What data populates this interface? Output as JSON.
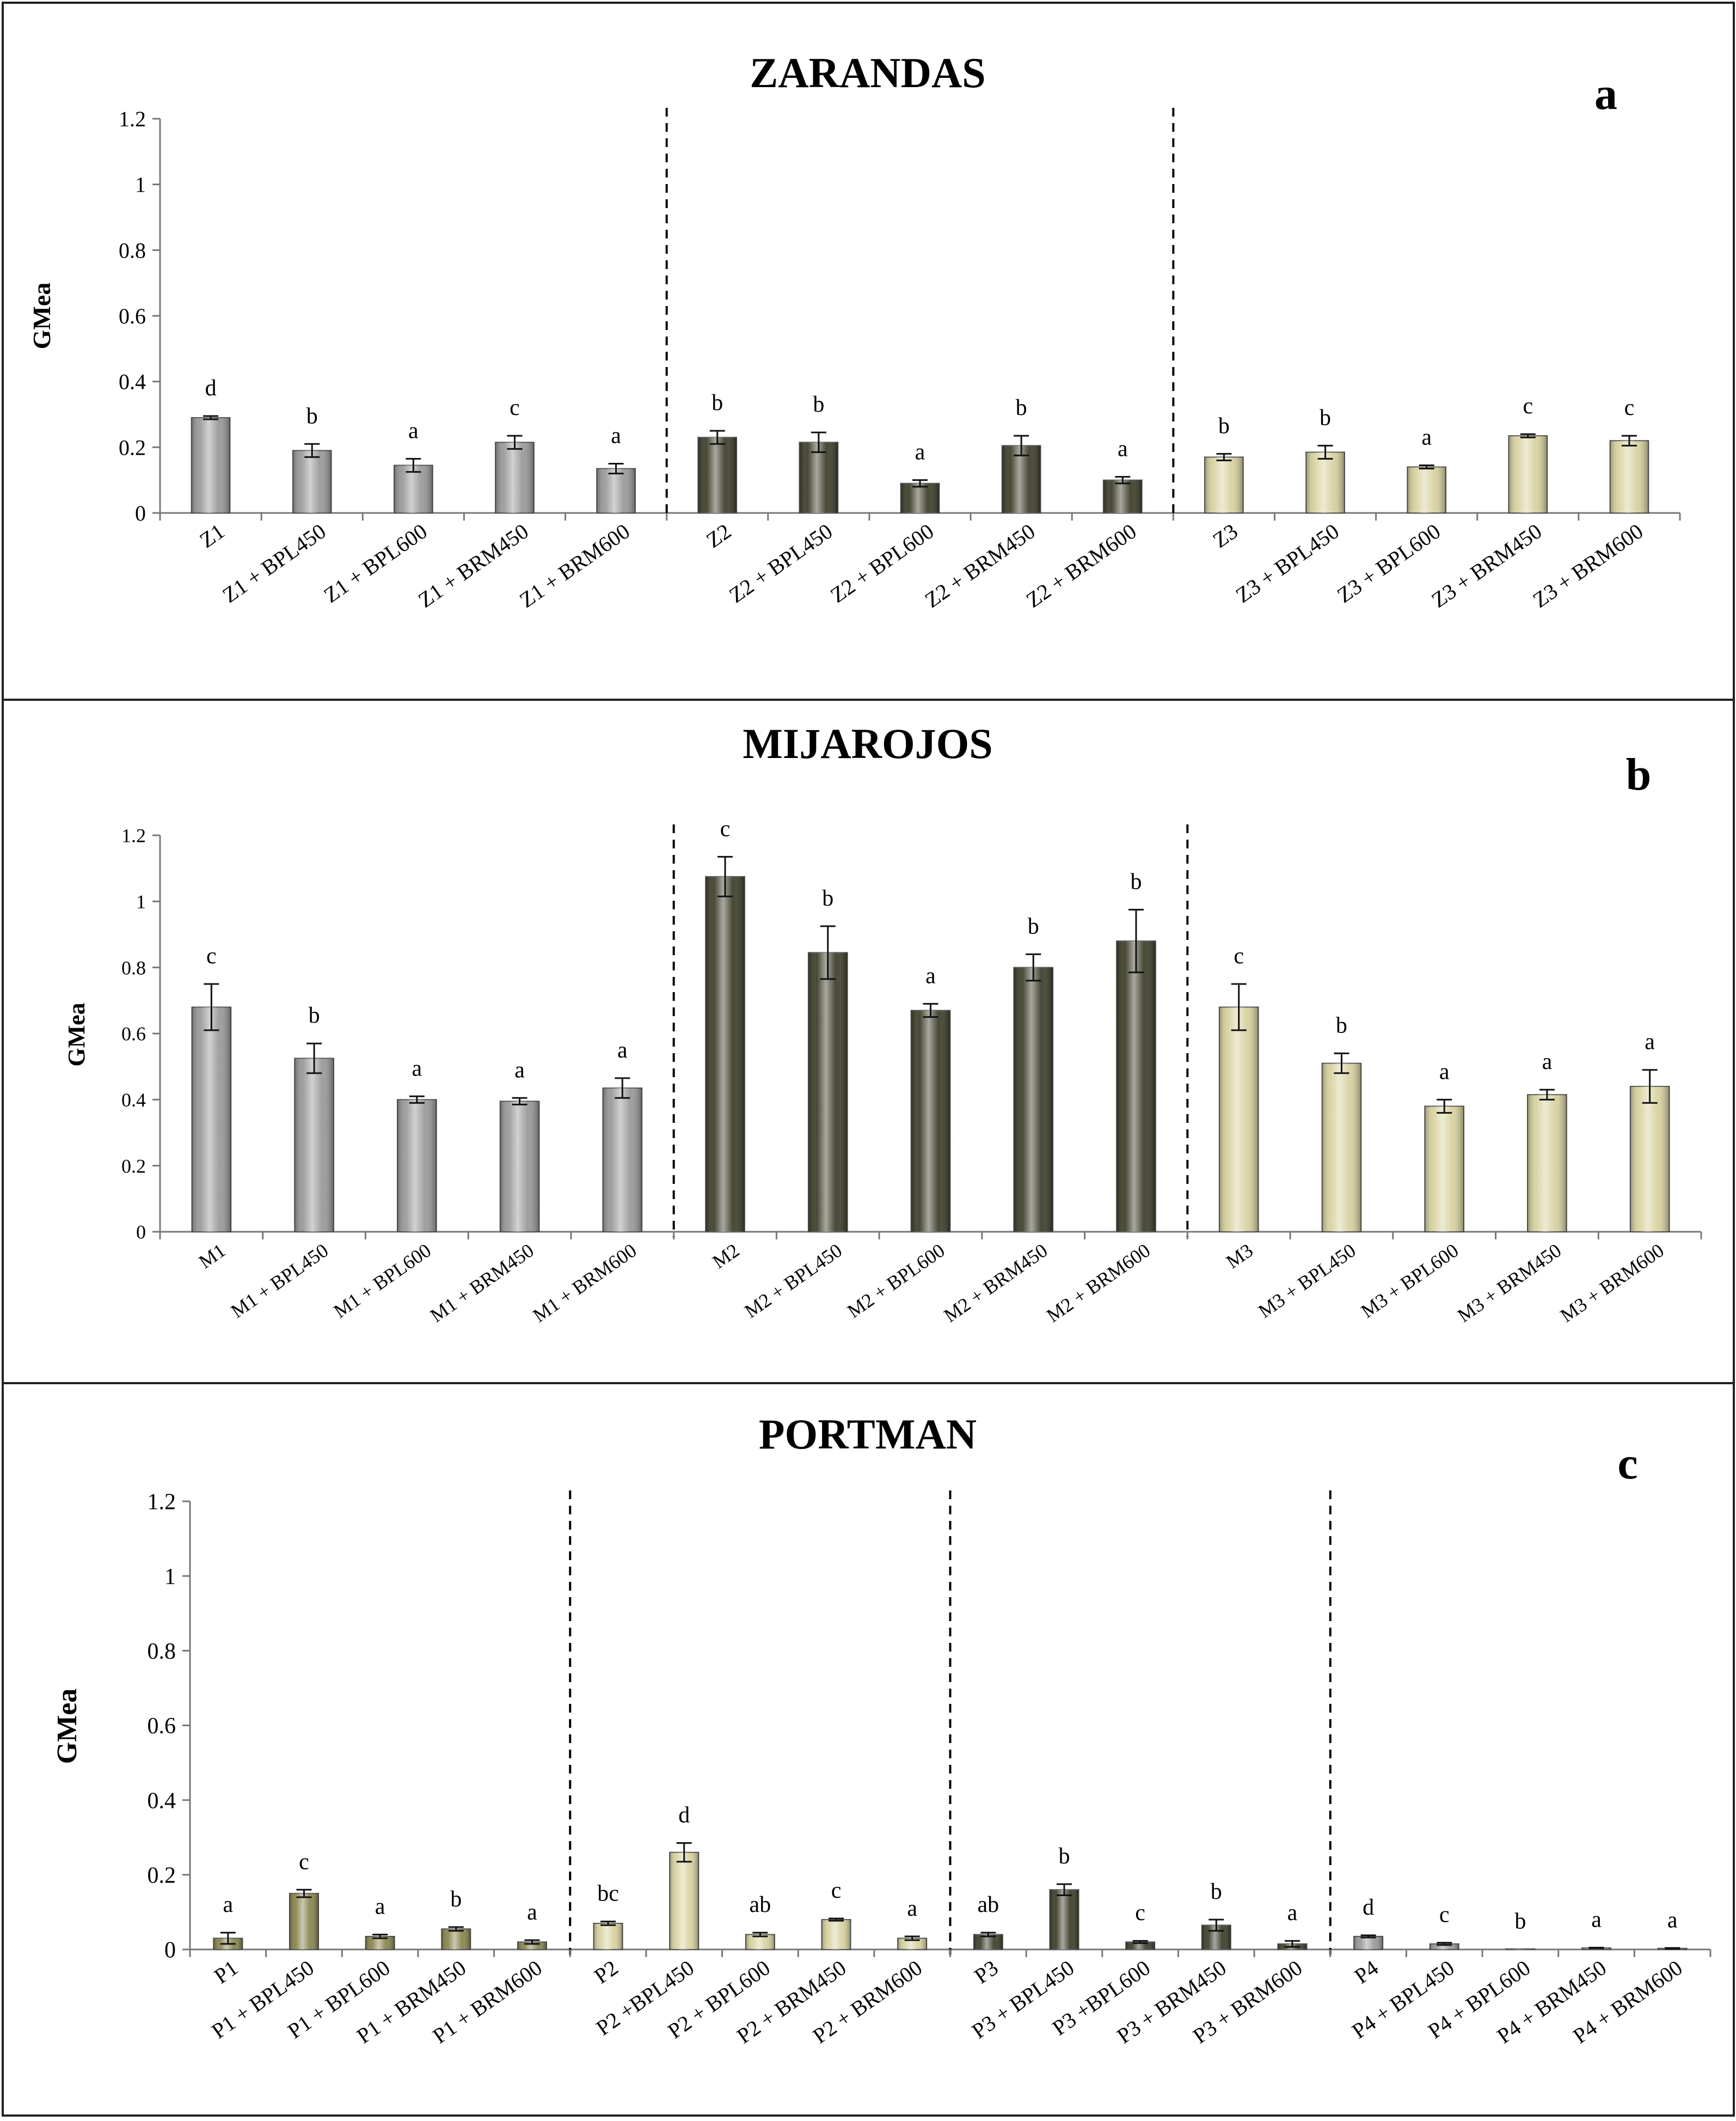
{
  "figure": {
    "panels": [
      {
        "title": "ZARANDAS",
        "letter": "a"
      },
      {
        "title": "MIJAROJOS",
        "letter": "b"
      },
      {
        "title": "PORTMAN",
        "letter": "c"
      }
    ]
  },
  "chart_data": [
    {
      "type": "bar",
      "title": "ZARANDAS",
      "panel_letter": "a",
      "ylabel": "GMea",
      "ylim": [
        0,
        1.2
      ],
      "yticks": [
        "0",
        "0.2",
        "0.4",
        "0.6",
        "0.8",
        "1",
        "1.2"
      ],
      "grid": false,
      "legend": "none",
      "groups": [
        {
          "color": "#9a9a9a",
          "bars": [
            {
              "label": "Z1",
              "value": 0.29,
              "error": 0.005,
              "letter": "d"
            },
            {
              "label": "Z1 + BPL450",
              "value": 0.19,
              "error": 0.02,
              "letter": "b"
            },
            {
              "label": "Z1 + BPL600",
              "value": 0.145,
              "error": 0.02,
              "letter": "a"
            },
            {
              "label": "Z1 + BRM450",
              "value": 0.215,
              "error": 0.02,
              "letter": "c"
            },
            {
              "label": "Z1 + BRM600",
              "value": 0.135,
              "error": 0.015,
              "letter": "a"
            }
          ]
        },
        {
          "color": "#3f3f2c",
          "bars": [
            {
              "label": "Z2",
              "value": 0.23,
              "error": 0.02,
              "letter": "b"
            },
            {
              "label": "Z2 + BPL450",
              "value": 0.215,
              "error": 0.03,
              "letter": "b"
            },
            {
              "label": "Z2 + BPL600",
              "value": 0.09,
              "error": 0.01,
              "letter": "a"
            },
            {
              "label": "Z2 + BRM450",
              "value": 0.205,
              "error": 0.03,
              "letter": "b"
            },
            {
              "label": "Z2 + BRM600",
              "value": 0.1,
              "error": 0.01,
              "letter": "a"
            }
          ]
        },
        {
          "color": "#d8d2a0",
          "bars": [
            {
              "label": "Z3",
              "value": 0.17,
              "error": 0.01,
              "letter": "b"
            },
            {
              "label": "Z3 + BPL450",
              "value": 0.185,
              "error": 0.02,
              "letter": "b"
            },
            {
              "label": "Z3 + BPL600",
              "value": 0.14,
              "error": 0.005,
              "letter": "a"
            },
            {
              "label": "Z3 + BRM450",
              "value": 0.235,
              "error": 0.005,
              "letter": "c"
            },
            {
              "label": "Z3 + BRM600",
              "value": 0.22,
              "error": 0.015,
              "letter": "c"
            }
          ]
        }
      ]
    },
    {
      "type": "bar",
      "title": "MIJAROJOS",
      "panel_letter": "b",
      "ylabel": "GMea",
      "ylim": [
        0,
        1.2
      ],
      "yticks": [
        "0",
        "0.2",
        "0.4",
        "0.6",
        "0.8",
        "1",
        "1.2"
      ],
      "grid": false,
      "legend": "none",
      "groups": [
        {
          "color": "#9a9a9a",
          "bars": [
            {
              "label": "M1",
              "value": 0.68,
              "error": 0.07,
              "letter": "c"
            },
            {
              "label": "M1 + BPL450",
              "value": 0.525,
              "error": 0.045,
              "letter": "b"
            },
            {
              "label": "M1 + BPL600",
              "value": 0.4,
              "error": 0.01,
              "letter": "a"
            },
            {
              "label": "M1 + BRM450",
              "value": 0.395,
              "error": 0.01,
              "letter": "a"
            },
            {
              "label": "M1 + BRM600",
              "value": 0.435,
              "error": 0.03,
              "letter": "a"
            }
          ]
        },
        {
          "color": "#3f3f2c",
          "bars": [
            {
              "label": "M2",
              "value": 1.075,
              "error": 0.06,
              "letter": "c"
            },
            {
              "label": "M2 + BPL450",
              "value": 0.845,
              "error": 0.08,
              "letter": "b"
            },
            {
              "label": "M2 + BPL600",
              "value": 0.67,
              "error": 0.02,
              "letter": "a"
            },
            {
              "label": "M2 + BRM450",
              "value": 0.8,
              "error": 0.04,
              "letter": "b"
            },
            {
              "label": "M2 + BRM600",
              "value": 0.88,
              "error": 0.095,
              "letter": "b"
            }
          ]
        },
        {
          "color": "#d8d2a0",
          "bars": [
            {
              "label": "M3",
              "value": 0.68,
              "error": 0.07,
              "letter": "c"
            },
            {
              "label": "M3 + BPL450",
              "value": 0.51,
              "error": 0.03,
              "letter": "b"
            },
            {
              "label": "M3 + BPL600",
              "value": 0.38,
              "error": 0.02,
              "letter": "a"
            },
            {
              "label": "M3 + BRM450",
              "value": 0.415,
              "error": 0.015,
              "letter": "a"
            },
            {
              "label": "M3 + BRM600",
              "value": 0.44,
              "error": 0.05,
              "letter": "a"
            }
          ]
        }
      ]
    },
    {
      "type": "bar",
      "title": "PORTMAN",
      "panel_letter": "c",
      "ylabel": "GMea",
      "ylim": [
        0,
        1.2
      ],
      "yticks": [
        "0",
        "0.2",
        "0.4",
        "0.6",
        "0.8",
        "1",
        "1.2"
      ],
      "grid": false,
      "legend": "none",
      "groups": [
        {
          "color": "#8a8650",
          "bars": [
            {
              "label": "P1",
              "value": 0.03,
              "error": 0.015,
              "letter": "a"
            },
            {
              "label": "P1 + BPL450",
              "value": 0.15,
              "error": 0.01,
              "letter": "c"
            },
            {
              "label": "P1 + BPL600",
              "value": 0.035,
              "error": 0.005,
              "letter": "a"
            },
            {
              "label": "P1 + BRM450",
              "value": 0.055,
              "error": 0.005,
              "letter": "b"
            },
            {
              "label": "P1 + BRM600",
              "value": 0.02,
              "error": 0.005,
              "letter": "a"
            }
          ]
        },
        {
          "color": "#d8d2a0",
          "bars": [
            {
              "label": "P2",
              "value": 0.07,
              "error": 0.005,
              "letter": "bc"
            },
            {
              "label": "P2 +BPL450",
              "value": 0.26,
              "error": 0.025,
              "letter": "d"
            },
            {
              "label": "P2 + BPL600",
              "value": 0.04,
              "error": 0.005,
              "letter": "ab"
            },
            {
              "label": "P2 + BRM450",
              "value": 0.08,
              "error": 0.003,
              "letter": "c"
            },
            {
              "label": "P2 + BRM600",
              "value": 0.03,
              "error": 0.005,
              "letter": "a"
            }
          ]
        },
        {
          "color": "#3f3f2c",
          "bars": [
            {
              "label": "P3",
              "value": 0.04,
              "error": 0.005,
              "letter": "ab"
            },
            {
              "label": "P3 + BPL450",
              "value": 0.16,
              "error": 0.015,
              "letter": "b"
            },
            {
              "label": "P3 +BPL600",
              "value": 0.02,
              "error": 0.003,
              "letter": "c"
            },
            {
              "label": "P3 + BRM450",
              "value": 0.065,
              "error": 0.015,
              "letter": "b"
            },
            {
              "label": "P3 + BRM600",
              "value": 0.015,
              "error": 0.008,
              "letter": "a"
            }
          ]
        },
        {
          "color": "#9a9a9a",
          "bars": [
            {
              "label": "P4",
              "value": 0.035,
              "error": 0.003,
              "letter": "d"
            },
            {
              "label": "P4 + BPL450",
              "value": 0.015,
              "error": 0.003,
              "letter": "c"
            },
            {
              "label": "P4 + BPL600",
              "value": 0.001,
              "error": 0.0,
              "letter": "b"
            },
            {
              "label": "P4 + BRM450",
              "value": 0.004,
              "error": 0.001,
              "letter": "a"
            },
            {
              "label": "P4 + BRM600",
              "value": 0.003,
              "error": 0.001,
              "letter": "a"
            }
          ]
        }
      ]
    }
  ]
}
